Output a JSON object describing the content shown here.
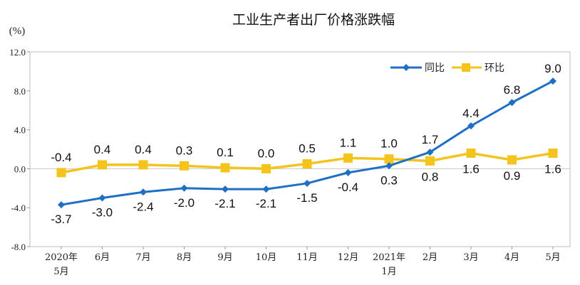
{
  "chart_data": {
    "type": "line",
    "title": "工业生产者出厂价格涨跌幅",
    "ylabel": "(%)",
    "xlabel": "",
    "ylim": [
      -8.0,
      12.0
    ],
    "yticks": [
      "12.0",
      "8.0",
      "4.0",
      "0.0",
      "-4.0",
      "-8.0"
    ],
    "ytick_values": [
      12,
      8,
      4,
      0,
      -4,
      -8
    ],
    "legend_position": "top-right",
    "categories": [
      [
        "2020年",
        "5月"
      ],
      [
        "6月"
      ],
      [
        "7月"
      ],
      [
        "8月"
      ],
      [
        "9月"
      ],
      [
        "10月"
      ],
      [
        "11月"
      ],
      [
        "12月"
      ],
      [
        "2021年",
        "1月"
      ],
      [
        "2月"
      ],
      [
        "3月"
      ],
      [
        "4月"
      ],
      [
        "5月"
      ]
    ],
    "series": [
      {
        "name": "同比",
        "color": "#1f6fc4",
        "marker": "diamond",
        "values": [
          -3.7,
          -3.0,
          -2.4,
          -2.0,
          -2.1,
          -2.1,
          -1.5,
          -0.4,
          0.3,
          1.7,
          4.4,
          6.8,
          9.0
        ],
        "labels": [
          "-3.7",
          "-3.0",
          "-2.4",
          "-2.0",
          "-2.1",
          "-2.1",
          "-1.5",
          "-0.4",
          "0.3",
          "1.7",
          "4.4",
          "6.8",
          "9.0"
        ]
      },
      {
        "name": "环比",
        "color": "#f4c31c",
        "marker": "square",
        "values": [
          -0.4,
          0.4,
          0.4,
          0.3,
          0.1,
          0.0,
          0.5,
          1.1,
          1.0,
          0.8,
          1.6,
          0.9,
          1.6
        ],
        "labels": [
          "-0.4",
          "0.4",
          "0.4",
          "0.3",
          "0.1",
          "0.0",
          "0.5",
          "1.1",
          "1.0",
          "0.8",
          "1.6",
          "0.9",
          "1.6"
        ]
      }
    ]
  }
}
